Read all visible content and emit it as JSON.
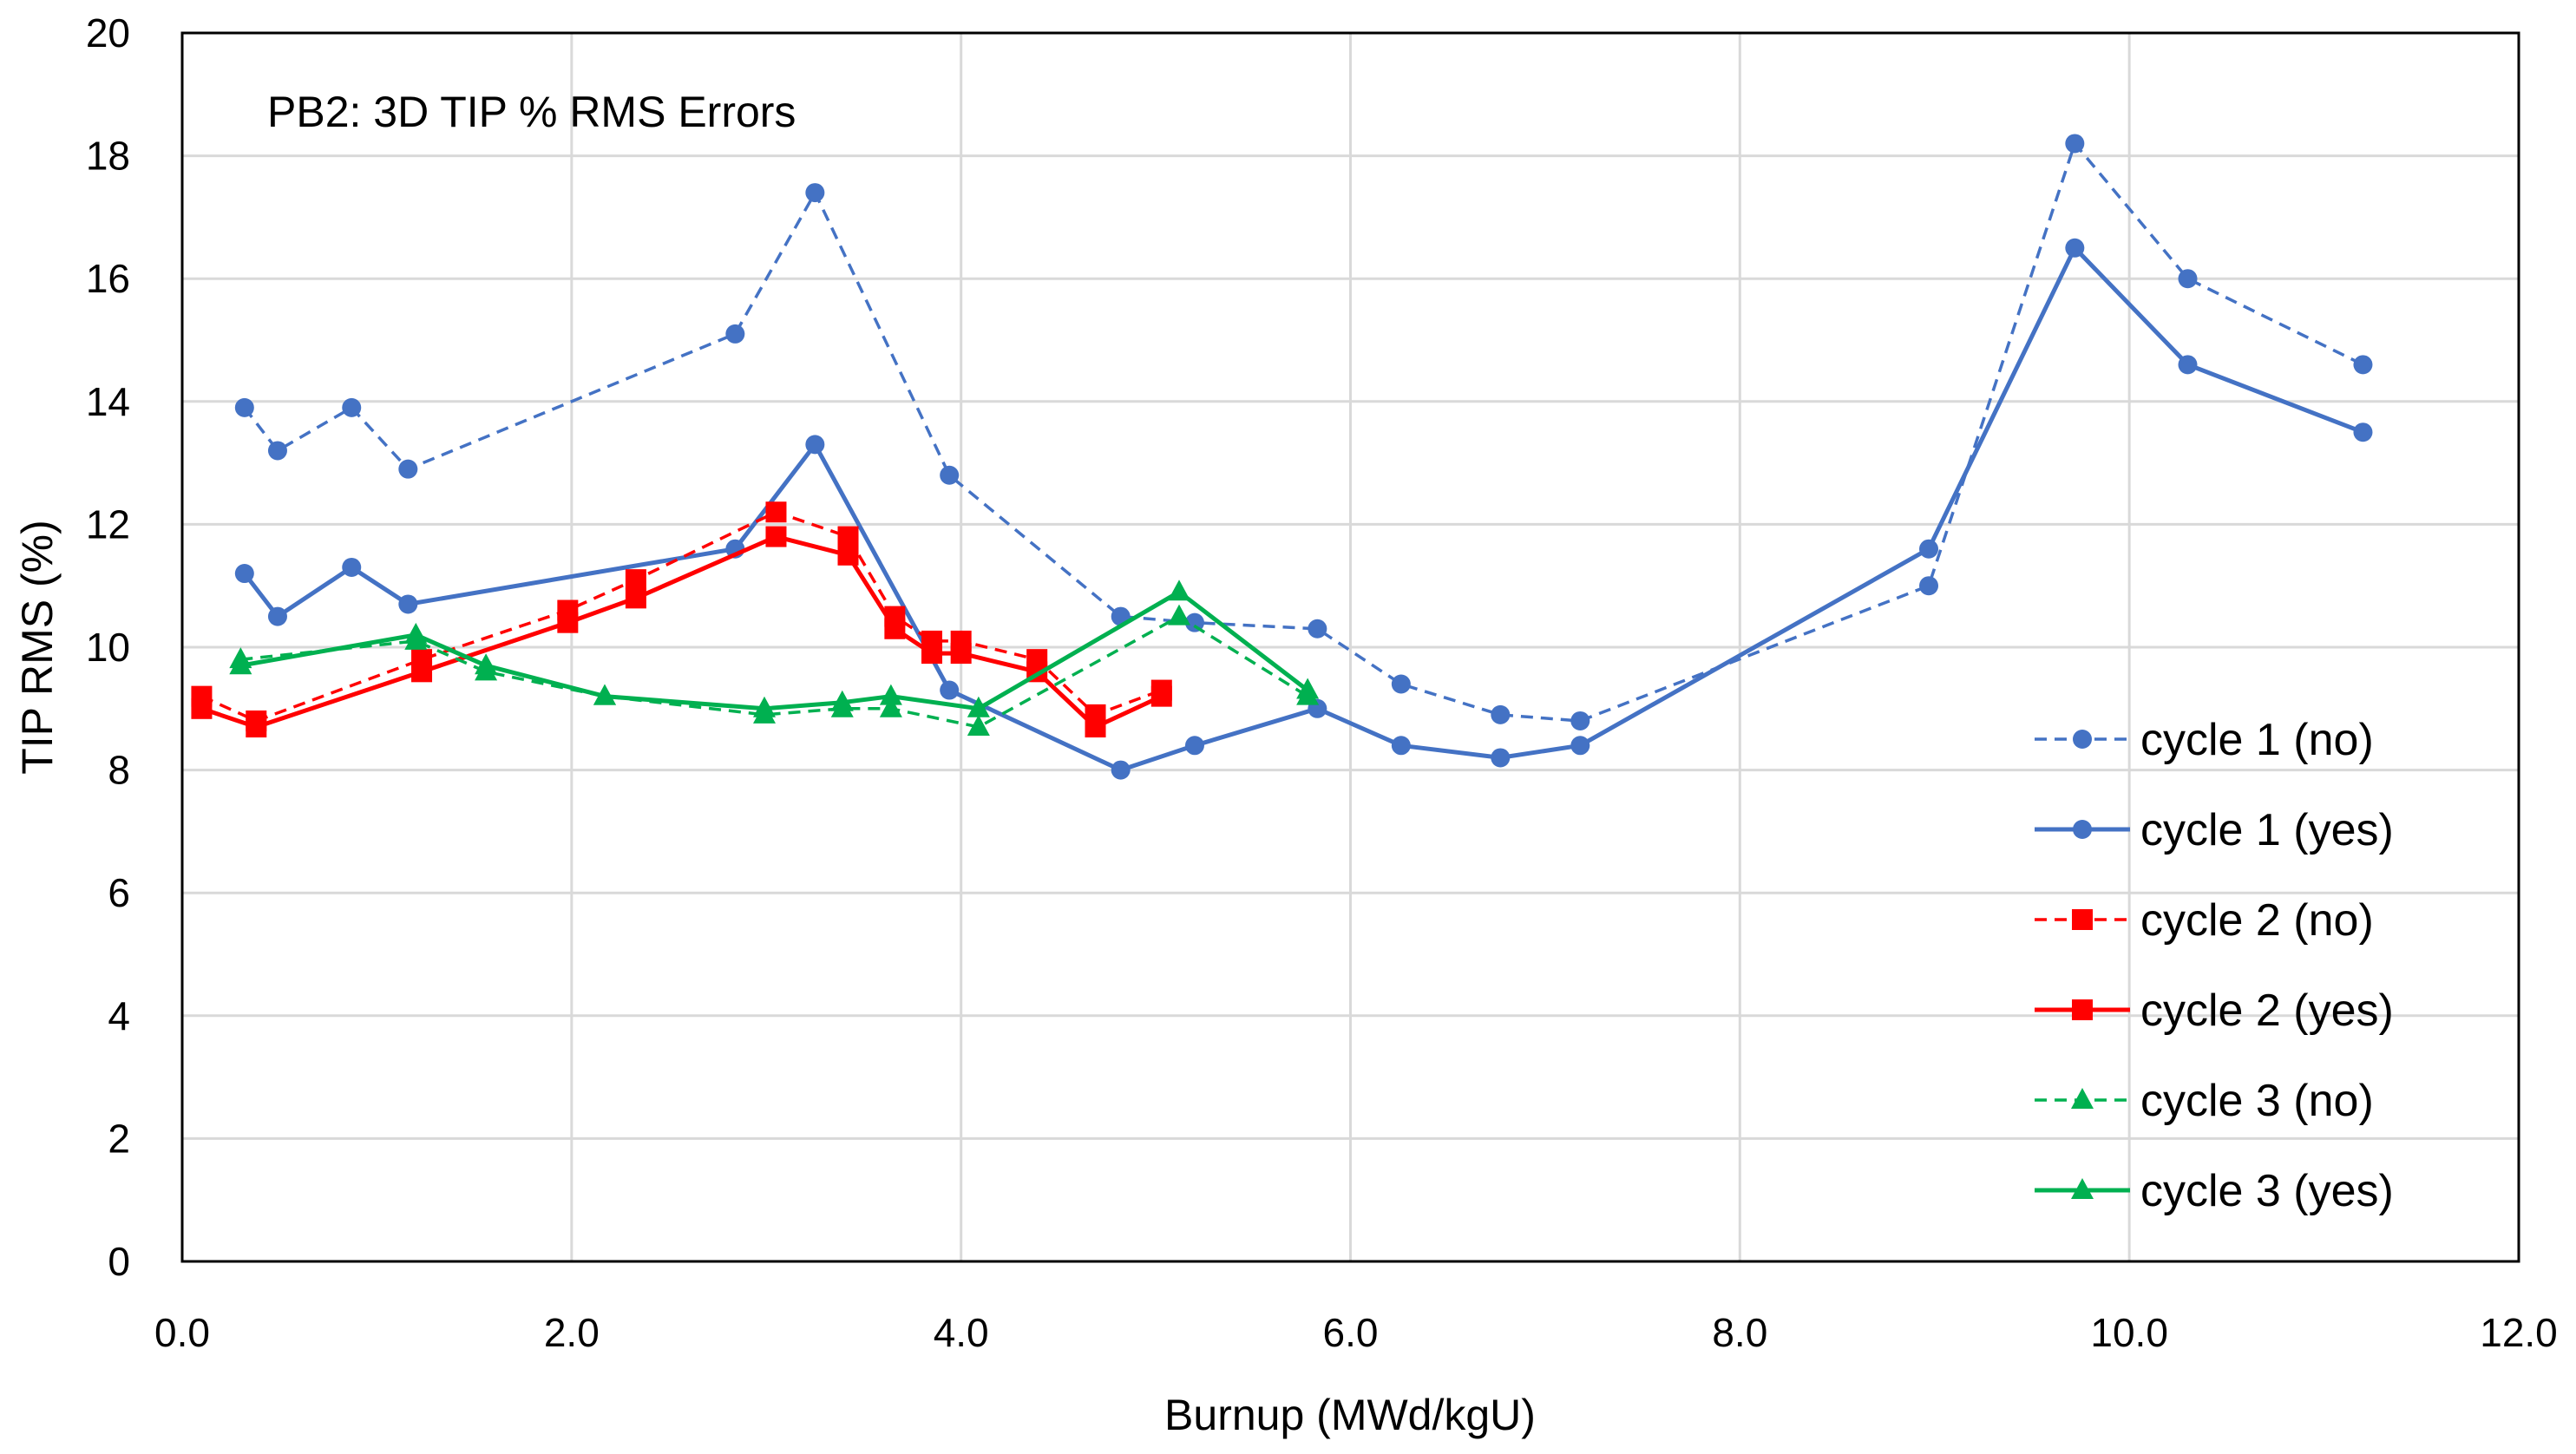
{
  "chart_data": {
    "type": "line",
    "title": "PB2: 3D TIP % RMS Errors",
    "xlabel": "Burnup (MWd/kgU)",
    "ylabel": "TIP RMS (%)",
    "xlim": [
      0,
      12
    ],
    "ylim": [
      0,
      20
    ],
    "xticks": [
      0,
      2,
      4,
      6,
      8,
      10,
      12
    ],
    "xtick_labels": [
      "0.0",
      "2.0",
      "4.0",
      "6.0",
      "8.0",
      "10.0",
      "12.0"
    ],
    "yticks": [
      0,
      2,
      4,
      6,
      8,
      10,
      12,
      14,
      16,
      18,
      20
    ],
    "ytick_labels": [
      "0",
      "2",
      "4",
      "6",
      "8",
      "10",
      "12",
      "14",
      "16",
      "18",
      "20"
    ],
    "grid": true,
    "legend_position": "right",
    "series": [
      {
        "name": "cycle 1 (no)",
        "color": "#4472C4",
        "dashed": true,
        "marker": "circle",
        "x": [
          0.32,
          0.49,
          0.87,
          1.16,
          2.84,
          3.25,
          3.94,
          4.82,
          5.2,
          5.83,
          6.26,
          6.77,
          7.18,
          8.97,
          9.72,
          10.3,
          11.2
        ],
        "y": [
          13.9,
          13.2,
          13.9,
          12.9,
          15.1,
          17.4,
          12.8,
          10.5,
          10.4,
          10.3,
          9.4,
          8.9,
          8.8,
          11.0,
          18.2,
          16.0,
          14.6
        ]
      },
      {
        "name": "cycle 1 (yes)",
        "color": "#4472C4",
        "dashed": false,
        "marker": "circle",
        "x": [
          0.32,
          0.49,
          0.87,
          1.16,
          2.84,
          3.25,
          3.94,
          4.82,
          5.2,
          5.83,
          6.26,
          6.77,
          7.18,
          8.97,
          9.72,
          10.3,
          11.2
        ],
        "y": [
          11.2,
          10.5,
          11.3,
          10.7,
          11.6,
          13.3,
          9.3,
          8.0,
          8.4,
          9.0,
          8.4,
          8.2,
          8.4,
          11.6,
          16.5,
          14.6,
          13.5
        ]
      },
      {
        "name": "cycle 2 (no)",
        "color": "#FF0000",
        "dashed": true,
        "marker": "square",
        "x": [
          0.1,
          0.38,
          1.23,
          1.98,
          2.33,
          3.05,
          3.42,
          3.66,
          3.85,
          4.0,
          4.39,
          4.69,
          5.03
        ],
        "y": [
          9.2,
          8.8,
          9.8,
          10.6,
          11.1,
          12.2,
          11.8,
          10.5,
          10.1,
          10.1,
          9.8,
          8.9,
          9.3
        ]
      },
      {
        "name": "cycle 2 (yes)",
        "color": "#FF0000",
        "dashed": false,
        "marker": "square",
        "x": [
          0.1,
          0.38,
          1.23,
          1.98,
          2.33,
          3.05,
          3.42,
          3.66,
          3.85,
          4.0,
          4.39,
          4.69,
          5.03
        ],
        "y": [
          9.0,
          8.7,
          9.6,
          10.4,
          10.8,
          11.8,
          11.5,
          10.3,
          9.9,
          9.9,
          9.6,
          8.7,
          9.2
        ]
      },
      {
        "name": "cycle 3 (no)",
        "color": "#00B050",
        "dashed": true,
        "marker": "triangle",
        "x": [
          0.3,
          1.2,
          1.56,
          2.17,
          2.99,
          3.39,
          3.64,
          4.09,
          5.12,
          5.78
        ],
        "y": [
          9.8,
          10.1,
          9.6,
          9.2,
          8.9,
          9.0,
          9.0,
          8.7,
          10.5,
          9.2
        ]
      },
      {
        "name": "cycle 3 (yes)",
        "color": "#00B050",
        "dashed": false,
        "marker": "triangle",
        "x": [
          0.3,
          1.2,
          1.56,
          2.17,
          2.99,
          3.39,
          3.64,
          4.09,
          5.12,
          5.78
        ],
        "y": [
          9.7,
          10.2,
          9.7,
          9.2,
          9.0,
          9.1,
          9.2,
          9.0,
          10.9,
          9.3
        ]
      }
    ]
  }
}
